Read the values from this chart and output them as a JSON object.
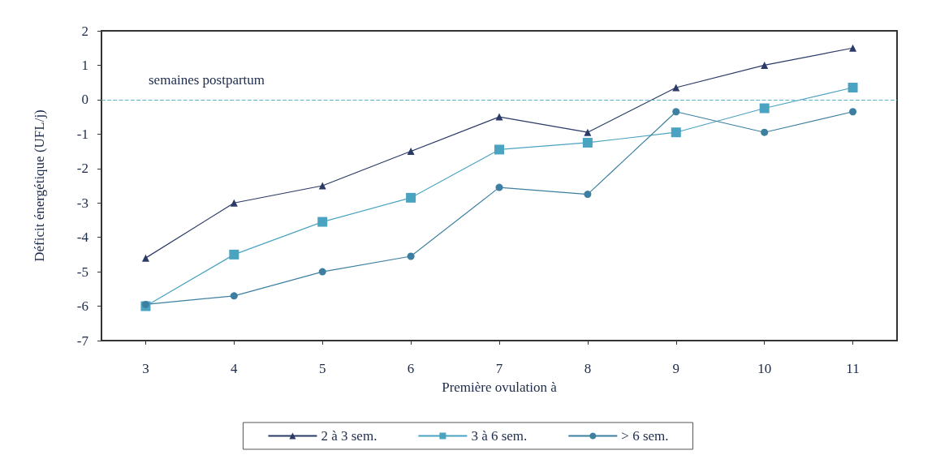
{
  "chart_data": {
    "type": "line",
    "xlabel": "Première ovulation à",
    "ylabel": "Déficit énergétique (UFL/j)",
    "annotations": [
      "semaines postpartum"
    ],
    "categories": [
      "3",
      "4",
      "5",
      "6",
      "7",
      "8",
      "9",
      "10",
      "11"
    ],
    "series": [
      {
        "name": "2 à 3 sem.",
        "color": "#2b3a67",
        "marker": "triangle",
        "values": [
          -4.6,
          -3.0,
          -2.5,
          -1.5,
          -0.5,
          -0.95,
          0.35,
          1.0,
          1.5
        ]
      },
      {
        "name": "3 à 6 sem.",
        "color": "#4aa3c0",
        "marker": "square",
        "values": [
          -6.0,
          -4.5,
          -3.55,
          -2.85,
          -1.45,
          -1.25,
          -0.95,
          -0.25,
          0.35
        ]
      },
      {
        "name": "> 6 sem.",
        "color": "#3d7fa0",
        "marker": "circle",
        "values": [
          -5.95,
          -5.7,
          -5.0,
          -4.55,
          -2.55,
          -2.75,
          -0.35,
          -0.95,
          -0.35
        ]
      }
    ],
    "ref_lines": [
      {
        "axis": "y",
        "value": 0,
        "color": "#5ab4c8",
        "line_style": "dashed"
      }
    ],
    "ylim": [
      -7,
      2
    ],
    "yticks": [
      -7,
      -6,
      -5,
      -4,
      -3,
      -2,
      -1,
      0,
      1,
      2
    ],
    "grid": false,
    "legend": "bottom"
  }
}
